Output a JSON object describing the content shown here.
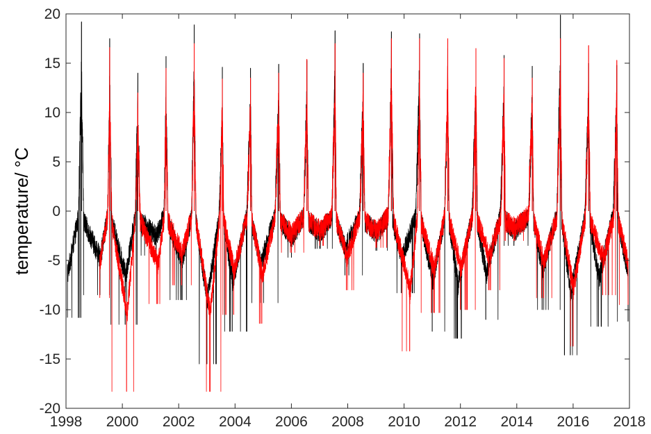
{
  "chart_data": {
    "type": "line",
    "title": "",
    "xlabel": "",
    "ylabel": "temperature/ °C",
    "xlim": [
      1998,
      2018
    ],
    "ylim": [
      -20,
      20
    ],
    "xticks": [
      1998,
      2000,
      2002,
      2004,
      2006,
      2008,
      2010,
      2012,
      2014,
      2016,
      2018
    ],
    "yticks": [
      -20,
      -15,
      -10,
      -5,
      0,
      5,
      10,
      15,
      20
    ],
    "xtick_labels": [
      "1998",
      "2000",
      "2002",
      "2004",
      "2006",
      "2008",
      "2010",
      "2012",
      "2014",
      "2016",
      "2018"
    ],
    "ytick_labels": [
      "-20",
      "-15",
      "-10",
      "-5",
      "0",
      "5",
      "10",
      "15",
      "20"
    ],
    "grid": false,
    "legend": "none",
    "series": [
      {
        "color": "#000000",
        "summer_peaks": [
          {
            "year": 1998.55,
            "peak": 19.2
          },
          {
            "year": 1999.55,
            "peak": 17.5
          },
          {
            "year": 2000.55,
            "peak": 14.0
          },
          {
            "year": 2001.55,
            "peak": 15.7
          },
          {
            "year": 2002.55,
            "peak": 18.9
          },
          {
            "year": 2003.55,
            "peak": 14.6
          },
          {
            "year": 2004.55,
            "peak": 14.5
          },
          {
            "year": 2005.55,
            "peak": 14.9
          },
          {
            "year": 2006.55,
            "peak": 15.3
          },
          {
            "year": 2007.55,
            "peak": 18.3
          },
          {
            "year": 2008.55,
            "peak": 15.0
          },
          {
            "year": 2009.55,
            "peak": 18.2
          },
          {
            "year": 2010.55,
            "peak": 18.0
          },
          {
            "year": 2011.55,
            "peak": 16.5
          },
          {
            "year": 2012.55,
            "peak": 15.8
          },
          {
            "year": 2013.55,
            "peak": 15.8
          },
          {
            "year": 2014.55,
            "peak": 14.7
          },
          {
            "year": 2015.55,
            "peak": 19.9
          },
          {
            "year": 2016.55,
            "peak": 15.0
          },
          {
            "year": 2017.55,
            "peak": 14.8
          }
        ],
        "winter_troughs": [
          {
            "year": 1998.05,
            "trough": -10.8
          },
          {
            "year": 1999.2,
            "trough": -8.5
          },
          {
            "year": 2000.1,
            "trough": -11.5
          },
          {
            "year": 2001.2,
            "trough": -4.5
          },
          {
            "year": 2002.1,
            "trough": -9.0
          },
          {
            "year": 2003.0,
            "trough": -15.5
          },
          {
            "year": 2003.9,
            "trough": -12.2
          },
          {
            "year": 2004.9,
            "trough": -9.3
          },
          {
            "year": 2006.0,
            "trough": -4.7
          },
          {
            "year": 2007.0,
            "trough": -3.8
          },
          {
            "year": 2007.9,
            "trough": -6.5
          },
          {
            "year": 2009.0,
            "trough": -4.0
          },
          {
            "year": 2009.9,
            "trough": -8.3
          },
          {
            "year": 2011.0,
            "trough": -12.2
          },
          {
            "year": 2011.9,
            "trough": -12.9
          },
          {
            "year": 2012.9,
            "trough": -11.0
          },
          {
            "year": 2013.9,
            "trough": -3.5
          },
          {
            "year": 2014.9,
            "trough": -10.0
          },
          {
            "year": 2015.9,
            "trough": -14.6
          },
          {
            "year": 2016.9,
            "trough": -11.7
          },
          {
            "year": 2017.95,
            "trough": -11.2
          }
        ]
      },
      {
        "color": "#ff0000",
        "summer_peaks": [
          {
            "year": 1999.55,
            "peak": 16.6
          },
          {
            "year": 2000.55,
            "peak": 12.0
          },
          {
            "year": 2001.55,
            "peak": 14.5
          },
          {
            "year": 2002.55,
            "peak": 17.0
          },
          {
            "year": 2003.55,
            "peak": 13.4
          },
          {
            "year": 2004.55,
            "peak": 13.5
          },
          {
            "year": 2005.55,
            "peak": 14.0
          },
          {
            "year": 2006.55,
            "peak": 15.4
          },
          {
            "year": 2007.55,
            "peak": 17.0
          },
          {
            "year": 2008.55,
            "peak": 14.0
          },
          {
            "year": 2009.55,
            "peak": 17.5
          },
          {
            "year": 2010.55,
            "peak": 17.5
          },
          {
            "year": 2011.55,
            "peak": 17.5
          },
          {
            "year": 2012.55,
            "peak": 16.5
          },
          {
            "year": 2013.55,
            "peak": 15.5
          },
          {
            "year": 2014.55,
            "peak": 13.5
          },
          {
            "year": 2015.55,
            "peak": 17.5
          },
          {
            "year": 2016.55,
            "peak": 16.8
          },
          {
            "year": 2017.55,
            "peak": 15.3
          }
        ],
        "winter_troughs": [
          {
            "year": 1999.2,
            "trough": -8.8
          },
          {
            "year": 2000.15,
            "trough": -18.3
          },
          {
            "year": 2001.25,
            "trough": -9.4
          },
          {
            "year": 2002.1,
            "trough": -7.5
          },
          {
            "year": 2003.1,
            "trough": -18.3
          },
          {
            "year": 2003.95,
            "trough": -10.5
          },
          {
            "year": 2004.95,
            "trough": -11.4
          },
          {
            "year": 2006.0,
            "trough": -4.2
          },
          {
            "year": 2007.0,
            "trough": -3.5
          },
          {
            "year": 2007.95,
            "trough": -8.0
          },
          {
            "year": 2009.0,
            "trough": -3.7
          },
          {
            "year": 2010.2,
            "trough": -14.2
          },
          {
            "year": 2011.05,
            "trough": -10.3
          },
          {
            "year": 2012.0,
            "trough": -10.0
          },
          {
            "year": 2013.0,
            "trough": -8.0
          },
          {
            "year": 2013.9,
            "trough": -3.0
          },
          {
            "year": 2014.95,
            "trough": -8.8
          },
          {
            "year": 2016.0,
            "trough": -13.7
          },
          {
            "year": 2017.05,
            "trough": -8.5
          },
          {
            "year": 2017.95,
            "trough": -9.5
          }
        ]
      }
    ]
  }
}
